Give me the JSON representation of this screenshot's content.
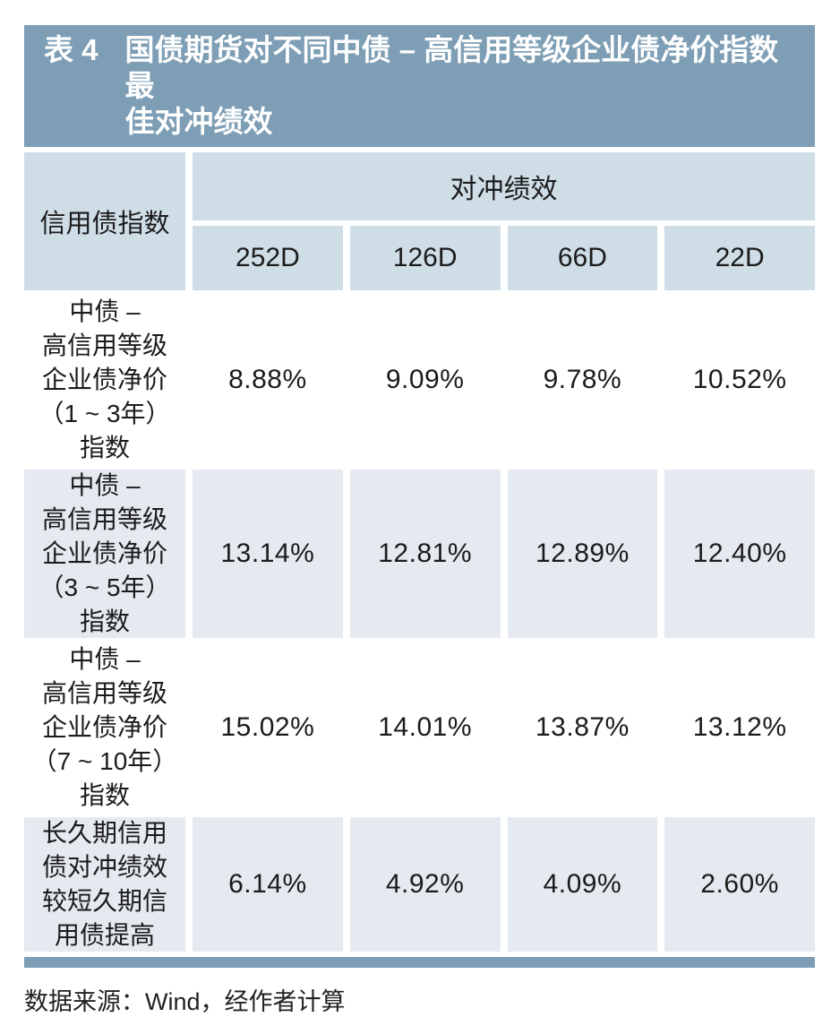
{
  "table": {
    "title": {
      "prefix": "表 4",
      "text": "国债期货对不同中债 – 高信用等级企业债净价指数最\n佳对冲绩效"
    },
    "header": {
      "row_label_column": "信用债指数",
      "group_label": "对冲绩效",
      "columns": [
        "252D",
        "126D",
        "66D",
        "22D"
      ]
    },
    "rows": [
      {
        "label": "中债 –\n高信用等级\n企业债净价\n（1 ~ 3年）\n指数",
        "values": [
          "8.88%",
          "9.09%",
          "9.78%",
          "10.52%"
        ]
      },
      {
        "label": "中债 –\n高信用等级\n企业债净价\n（3 ~ 5年）\n指数",
        "values": [
          "13.14%",
          "12.81%",
          "12.89%",
          "12.40%"
        ]
      },
      {
        "label": "中债 –\n高信用等级\n企业债净价\n（7 ~ 10年）\n指数",
        "values": [
          "15.02%",
          "14.01%",
          "13.87%",
          "13.12%"
        ]
      },
      {
        "label": "长久期信用\n债对冲绩效\n较短久期信\n用债提高",
        "values": [
          "6.14%",
          "4.92%",
          "4.09%",
          "2.60%"
        ]
      }
    ],
    "source": "数据来源：Wind，经作者计算"
  },
  "colors": {
    "accent": "#7d9eb5",
    "header-bg": "#cfdde7",
    "shade-bg": "#e5e9f0",
    "row-bg": "#ffffff",
    "title-fg": "#ffffff",
    "text": "#1b1b1b"
  },
  "chart_data": {
    "type": "table",
    "title": "表 4 国债期货对不同中债 – 高信用等级企业债净价指数最佳对冲绩效",
    "columns": [
      "信用债指数",
      "252D",
      "126D",
      "66D",
      "22D"
    ],
    "rows": [
      [
        "中债 – 高信用等级企业债净价（1 ~ 3年）指数",
        "8.88%",
        "9.09%",
        "9.78%",
        "10.52%"
      ],
      [
        "中债 – 高信用等级企业债净价（3 ~ 5年）指数",
        "13.14%",
        "12.81%",
        "12.89%",
        "12.40%"
      ],
      [
        "中债 – 高信用等级企业债净价（7 ~ 10年）指数",
        "15.02%",
        "14.01%",
        "13.87%",
        "13.12%"
      ],
      [
        "长久期信用债对冲绩效较短久期信用债提高",
        "6.14%",
        "4.92%",
        "4.09%",
        "2.60%"
      ]
    ],
    "source": "数据来源：Wind，经作者计算"
  }
}
